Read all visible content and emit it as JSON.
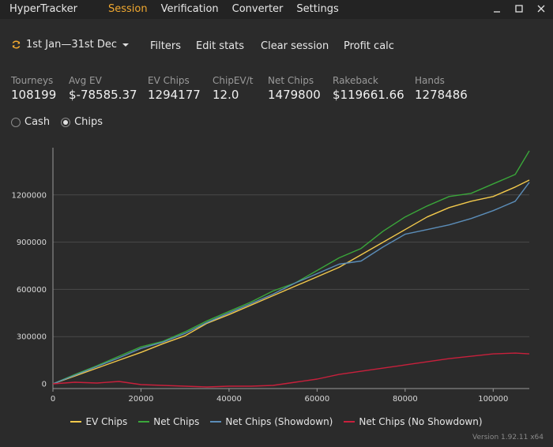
{
  "titlebar": {
    "app_title": "HyperTracker",
    "nav": [
      {
        "label": "Session",
        "active": true
      },
      {
        "label": "Verification",
        "active": false
      },
      {
        "label": "Converter",
        "active": false
      },
      {
        "label": "Settings",
        "active": false
      }
    ],
    "controls": [
      "minimize-icon",
      "maximize-icon",
      "close-icon"
    ]
  },
  "toolbar": {
    "date_range": "1st Jan—31st Dec",
    "refresh_icon": "refresh-icon",
    "dropdown_icon": "triangle-down-icon",
    "filters": "Filters",
    "edit_stats": "Edit stats",
    "clear_session": "Clear session",
    "profit_calc": "Profit calc"
  },
  "stats": [
    {
      "label": "Tourneys",
      "value": "108199"
    },
    {
      "label": "Avg EV",
      "value": "$-78585.37"
    },
    {
      "label": "EV Chips",
      "value": "1294177"
    },
    {
      "label": "ChipEV/t",
      "value": "12.0"
    },
    {
      "label": "Net Chips",
      "value": "1479800"
    },
    {
      "label": "Rakeback",
      "value": "$119661.66"
    },
    {
      "label": "Hands",
      "value": "1278486"
    }
  ],
  "mode": {
    "options": [
      {
        "label": "Cash",
        "checked": false
      },
      {
        "label": "Chips",
        "checked": true
      }
    ]
  },
  "chart_data": {
    "type": "line",
    "title": "",
    "xlabel": "",
    "ylabel": "",
    "xlim": [
      0,
      108199
    ],
    "ylim": [
      -30000,
      1500000
    ],
    "x_ticks": [
      0,
      20000,
      40000,
      60000,
      80000,
      100000
    ],
    "y_ticks": [
      0,
      300000,
      600000,
      900000,
      1200000
    ],
    "grid": "horizontal",
    "legend_position": "bottom",
    "x": [
      0,
      5000,
      10000,
      15000,
      20000,
      25000,
      30000,
      35000,
      40000,
      45000,
      50000,
      55000,
      60000,
      65000,
      70000,
      75000,
      80000,
      85000,
      90000,
      95000,
      100000,
      105000,
      108199
    ],
    "series": [
      {
        "name": "EV Chips",
        "color": "#f2c94c",
        "values": [
          0,
          50000,
          100000,
          150000,
          200000,
          255000,
          305000,
          385000,
          440000,
          500000,
          560000,
          620000,
          680000,
          740000,
          820000,
          900000,
          980000,
          1060000,
          1120000,
          1160000,
          1190000,
          1250000,
          1294177
        ]
      },
      {
        "name": "Net Chips",
        "color": "#3aa63a",
        "values": [
          0,
          60000,
          115000,
          175000,
          235000,
          270000,
          330000,
          400000,
          460000,
          520000,
          590000,
          640000,
          720000,
          800000,
          860000,
          970000,
          1060000,
          1130000,
          1190000,
          1210000,
          1270000,
          1330000,
          1479800
        ]
      },
      {
        "name": "Net Chips (Showdown)",
        "color": "#5b8db8",
        "values": [
          0,
          55000,
          110000,
          165000,
          225000,
          265000,
          320000,
          390000,
          450000,
          510000,
          570000,
          640000,
          700000,
          760000,
          780000,
          870000,
          950000,
          980000,
          1010000,
          1050000,
          1100000,
          1160000,
          1280000
        ]
      },
      {
        "name": "Net Chips (No Showdown)",
        "color": "#c8203c",
        "values": [
          0,
          10000,
          5000,
          15000,
          -5000,
          -10000,
          -15000,
          -20000,
          -15000,
          -15000,
          -10000,
          10000,
          30000,
          60000,
          80000,
          100000,
          120000,
          140000,
          160000,
          175000,
          190000,
          195000,
          190000
        ]
      }
    ]
  },
  "version": "Version 1.92.11 x64"
}
